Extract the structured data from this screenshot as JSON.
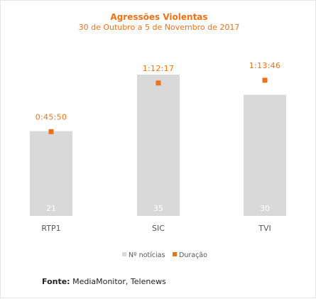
{
  "chart_data": {
    "type": "bar",
    "title": "Agressões Violentas",
    "subtitle": "30 de Outubro a 5 de Novembro de 2017",
    "categories": [
      "RTP1",
      "SIC",
      "TVI"
    ],
    "series": [
      {
        "name": "Nº notícias",
        "kind": "bar",
        "values": [
          21,
          35,
          30
        ],
        "color": "#d9d9d9"
      },
      {
        "name": "Duração",
        "kind": "point",
        "values": [
          "0:45:50",
          "1:12:17",
          "1:13:46"
        ],
        "seconds": [
          2750,
          4337,
          4426
        ],
        "color": "#ec7118"
      }
    ],
    "legend_position": "bottom",
    "grid": false
  },
  "source": {
    "label": "Fonte:",
    "text": "MediaMonitor, Telenews"
  }
}
